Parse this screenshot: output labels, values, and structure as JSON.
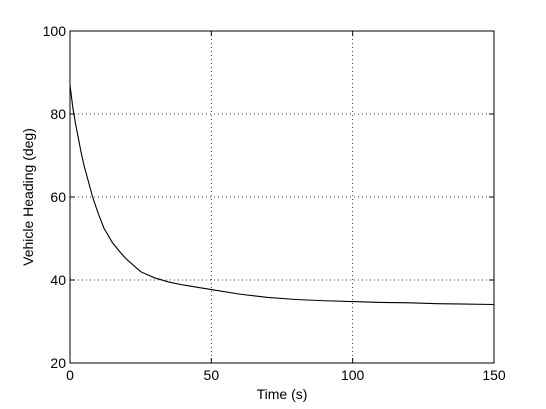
{
  "chart_data": {
    "type": "line",
    "title": "",
    "xlabel": "Time (s)",
    "ylabel": "Vehicle Heading (deg)",
    "xlim": [
      0,
      150
    ],
    "ylim": [
      20,
      100
    ],
    "x_ticks": [
      "0",
      "50",
      "100",
      "150"
    ],
    "y_ticks": [
      "20",
      "40",
      "60",
      "80",
      "100"
    ],
    "grid": true,
    "legend": "none",
    "line_color": "#000000",
    "series": [
      {
        "x": [
          0,
          1,
          2,
          3,
          4,
          5,
          6,
          8,
          10,
          12,
          15,
          18,
          20,
          25,
          30,
          35,
          40,
          50,
          60,
          70,
          80,
          90,
          100,
          110,
          120,
          130,
          140,
          150
        ],
        "y": [
          87,
          81.5,
          77.5,
          74,
          70.5,
          67.5,
          65,
          60,
          56,
          52.5,
          49,
          46.5,
          45,
          42,
          40.5,
          39.5,
          38.8,
          37.7,
          36.6,
          35.8,
          35.3,
          35,
          34.8,
          34.6,
          34.5,
          34.3,
          34.2,
          34.1
        ]
      }
    ]
  }
}
